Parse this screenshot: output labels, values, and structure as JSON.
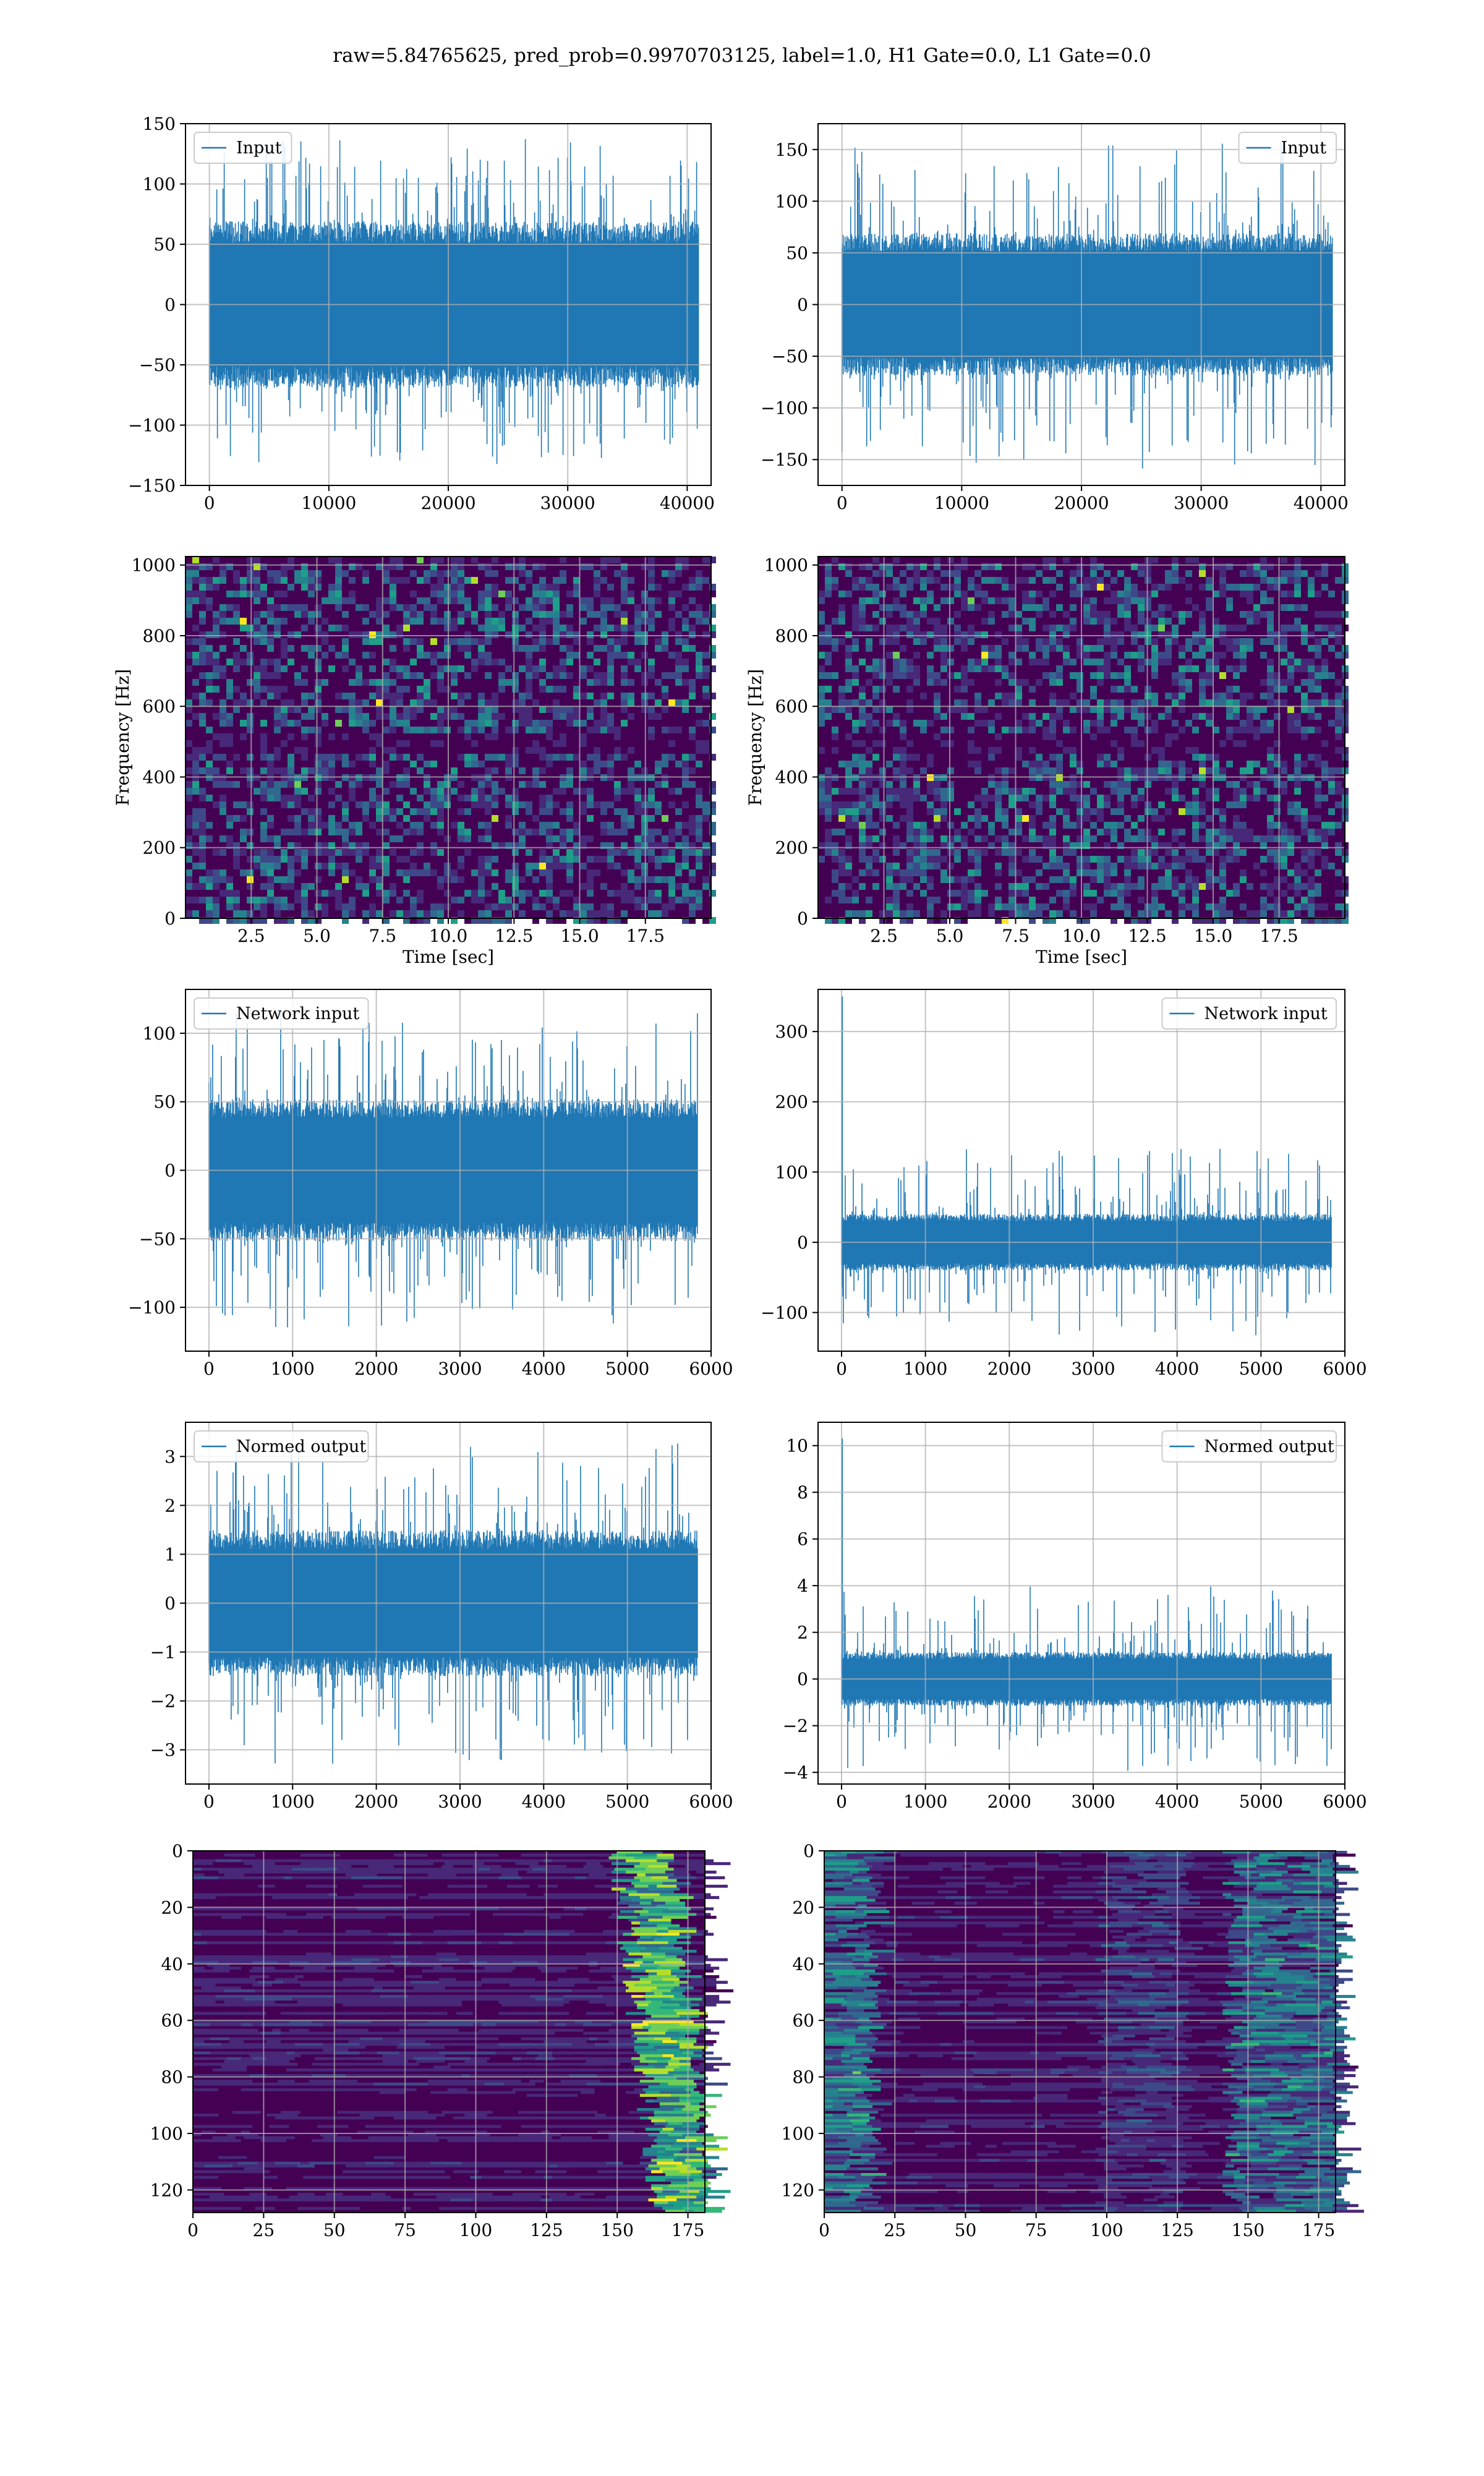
{
  "figure": {
    "suptitle": "raw=5.84765625, pred_prob=0.9970703125, label=1.0, H1 Gate=0.0, L1 Gate=0.0",
    "colors": {
      "line": "#1f77b4",
      "grid": "#b0b0b0",
      "viridis_dark": "#440154",
      "viridis_mid": "#3b528b",
      "viridis_teal": "#21918c",
      "viridis_green": "#5ec962",
      "viridis_yellow": "#fde725"
    }
  },
  "chart_data": [
    {
      "type": "line",
      "panel": "row1-left",
      "legend": "Input",
      "legend_loc": "upper left",
      "xlim": [
        -2000,
        42000
      ],
      "ylim": [
        -150,
        150
      ],
      "xticks": [
        0,
        10000,
        20000,
        30000,
        40000
      ],
      "yticks": [
        -150,
        -100,
        -50,
        0,
        50,
        100,
        150
      ],
      "n_points": 40960,
      "core_amplitude": 60,
      "spike_amplitude": 140
    },
    {
      "type": "line",
      "panel": "row1-right",
      "legend": "Input",
      "legend_loc": "upper right",
      "xlim": [
        -2000,
        42000
      ],
      "ylim": [
        -175,
        175
      ],
      "xticks": [
        0,
        10000,
        20000,
        30000,
        40000
      ],
      "yticks": [
        -150,
        -100,
        -50,
        0,
        50,
        100,
        150
      ],
      "n_points": 40960,
      "core_amplitude": 60,
      "spike_amplitude": 160
    },
    {
      "type": "heatmap",
      "panel": "row2-left",
      "xlabel": "Time [sec]",
      "ylabel": "Frequency [Hz]",
      "xlim": [
        0,
        20
      ],
      "ylim": [
        0,
        1024
      ],
      "xticks": [
        2.5,
        5.0,
        7.5,
        10.0,
        12.5,
        15.0,
        17.5
      ],
      "yticks": [
        0,
        200,
        400,
        600,
        800,
        1000
      ]
    },
    {
      "type": "heatmap",
      "panel": "row2-right",
      "xlabel": "Time [sec]",
      "ylabel": "Frequency [Hz]",
      "xlim": [
        0,
        20
      ],
      "ylim": [
        0,
        1024
      ],
      "xticks": [
        2.5,
        5.0,
        7.5,
        10.0,
        12.5,
        15.0,
        17.5
      ],
      "yticks": [
        0,
        200,
        400,
        600,
        800,
        1000
      ]
    },
    {
      "type": "line",
      "panel": "row3-left",
      "legend": "Network input",
      "legend_loc": "upper left",
      "xlim": [
        -280,
        6000
      ],
      "ylim": [
        -132,
        132
      ],
      "xticks": [
        0,
        1000,
        2000,
        3000,
        4000,
        5000,
        6000
      ],
      "yticks": [
        -100,
        -50,
        0,
        50,
        100
      ],
      "n_points": 5840,
      "core_amplitude": 45,
      "spike_amplitude": 115
    },
    {
      "type": "line",
      "panel": "row3-right",
      "legend": "Network input",
      "legend_loc": "upper right",
      "xlim": [
        -280,
        6000
      ],
      "ylim": [
        -155,
        360
      ],
      "xticks": [
        0,
        1000,
        2000,
        3000,
        4000,
        5000,
        6000
      ],
      "yticks": [
        -100,
        0,
        100,
        200,
        300
      ],
      "n_points": 5840,
      "core_amplitude": 35,
      "spike_amplitude": 135,
      "initial_spike": 350
    },
    {
      "type": "line",
      "panel": "row4-left",
      "legend": "Normed output",
      "legend_loc": "upper left",
      "xlim": [
        -280,
        6000
      ],
      "ylim": [
        -3.7,
        3.7
      ],
      "xticks": [
        0,
        1000,
        2000,
        3000,
        4000,
        5000,
        6000
      ],
      "yticks": [
        -3,
        -2,
        -1,
        0,
        1,
        2,
        3
      ],
      "n_points": 5840,
      "core_amplitude": 1.3,
      "spike_amplitude": 3.3
    },
    {
      "type": "line",
      "panel": "row4-right",
      "legend": "Normed output",
      "legend_loc": "upper right",
      "xlim": [
        -280,
        6000
      ],
      "ylim": [
        -4.5,
        11
      ],
      "xticks": [
        0,
        1000,
        2000,
        3000,
        4000,
        5000,
        6000
      ],
      "yticks": [
        -4,
        -2,
        0,
        2,
        4,
        6,
        8,
        10
      ],
      "n_points": 5840,
      "core_amplitude": 1.0,
      "spike_amplitude": 4.0,
      "initial_spike": 10.3
    },
    {
      "type": "heatmap",
      "panel": "row5-left",
      "xlim": [
        0,
        181
      ],
      "ylim": [
        128,
        0
      ],
      "xticks": [
        0,
        25,
        50,
        75,
        100,
        125,
        150,
        175
      ],
      "yticks": [
        0,
        20,
        40,
        60,
        80,
        100,
        120
      ]
    },
    {
      "type": "heatmap",
      "panel": "row5-right",
      "xlim": [
        0,
        181
      ],
      "ylim": [
        128,
        0
      ],
      "xticks": [
        0,
        25,
        50,
        75,
        100,
        125,
        150,
        175
      ],
      "yticks": [
        0,
        20,
        40,
        60,
        80,
        100,
        120
      ]
    }
  ]
}
